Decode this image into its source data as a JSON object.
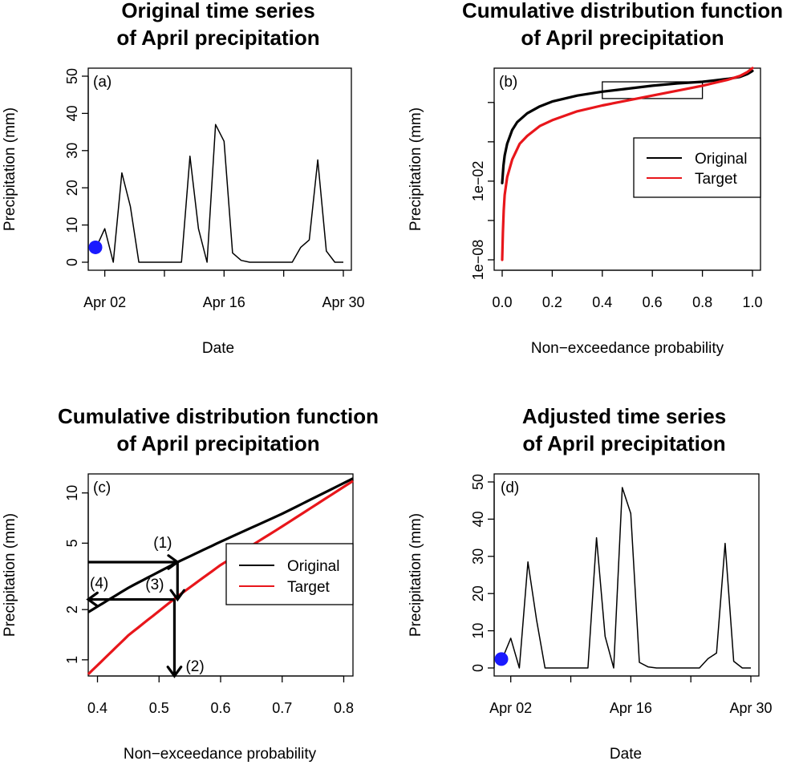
{
  "chart_data": [
    {
      "id": "a",
      "type": "line",
      "panel_tag": "(a)",
      "title_lines": [
        "Original time series",
        "of April precipitation"
      ],
      "xlabel": "Date",
      "ylabel": "Precipitation (mm)",
      "x_tick_labels": [
        "Apr 02",
        "Apr 16",
        "Apr 30"
      ],
      "x_tick_days": [
        2,
        16,
        30
      ],
      "x_minor_tick_days": [
        9,
        23
      ],
      "y_ticks": [
        0,
        10,
        20,
        30,
        40,
        50
      ],
      "xlim": [
        1,
        30
      ],
      "ylim": [
        0,
        50
      ],
      "series": [
        {
          "color": "#000000",
          "x": [
            1,
            2,
            3,
            4,
            5,
            6,
            7,
            8,
            9,
            10,
            11,
            12,
            13,
            14,
            15,
            16,
            17,
            18,
            19,
            20,
            21,
            22,
            23,
            24,
            25,
            26,
            27,
            28,
            29,
            30
          ],
          "values": [
            4,
            9,
            0,
            24,
            15,
            0,
            0,
            0,
            0,
            0,
            0,
            28.5,
            9,
            0,
            37,
            32.5,
            2.5,
            0.5,
            0,
            0,
            0,
            0,
            0,
            0,
            4,
            6,
            27.5,
            3,
            0,
            0
          ]
        }
      ],
      "highlight_point": {
        "x": 1,
        "y": 4,
        "color": "#1a1aff"
      }
    },
    {
      "id": "b",
      "type": "line",
      "panel_tag": "(b)",
      "title_lines": [
        "Cumulative distribution function",
        "of April precipitation"
      ],
      "xlabel": "Non−exceedance probability",
      "ylabel": "Precipitation (mm)",
      "x_ticks": [
        0.0,
        0.2,
        0.4,
        0.6,
        0.8,
        1.0
      ],
      "x_tick_labels": [
        "0.0",
        "0.2",
        "0.4",
        "0.6",
        "0.8",
        "1.0"
      ],
      "y_scale": "log",
      "y_ticks": [
        1e-08,
        1e-06,
        0.0001,
        0.01,
        1
      ],
      "y_tick_labels": [
        "1e−08",
        "",
        "1e−02",
        "",
        ""
      ],
      "y_labeled_ticks": [
        "1e−08",
        "1e−02"
      ],
      "xlim": [
        0,
        1
      ],
      "ylim_log10": [
        -8,
        1.5
      ],
      "series": [
        {
          "name": "Original",
          "color": "#000000",
          "x": [
            0.0,
            0.005,
            0.01,
            0.02,
            0.04,
            0.06,
            0.1,
            0.15,
            0.2,
            0.3,
            0.4,
            0.5,
            0.6,
            0.7,
            0.8,
            0.9,
            0.95,
            0.98,
            1.0
          ],
          "log10y": [
            -4.1,
            -3.2,
            -2.7,
            -2.1,
            -1.4,
            -1.0,
            -0.55,
            -0.2,
            0.05,
            0.35,
            0.55,
            0.7,
            0.85,
            0.97,
            1.05,
            1.2,
            1.3,
            1.45,
            1.6
          ]
        },
        {
          "name": "Target",
          "color": "#e8161b",
          "x": [
            0.0,
            0.003,
            0.006,
            0.01,
            0.02,
            0.04,
            0.07,
            0.1,
            0.15,
            0.2,
            0.3,
            0.4,
            0.5,
            0.6,
            0.7,
            0.8,
            0.9,
            0.95,
            0.98,
            1.0
          ],
          "log10y": [
            -8,
            -6.6,
            -5.5,
            -4.7,
            -3.8,
            -2.9,
            -2.1,
            -1.7,
            -1.2,
            -0.9,
            -0.45,
            -0.15,
            0.1,
            0.35,
            0.6,
            0.85,
            1.15,
            1.35,
            1.55,
            1.75
          ]
        }
      ],
      "zoom_box": {
        "x0": 0.4,
        "x1": 0.8,
        "log10y0": 0.2,
        "log10y1": 1.05
      },
      "legend_position": "center-right"
    },
    {
      "id": "c",
      "type": "line",
      "panel_tag": "(c)",
      "title_lines": [
        "Cumulative distribution function",
        "of April precipitation"
      ],
      "xlabel": "Non−exceedance probability",
      "ylabel": "Precipitation (mm)",
      "x_ticks": [
        0.4,
        0.5,
        0.6,
        0.7,
        0.8
      ],
      "x_tick_labels": [
        "0.4",
        "0.5",
        "0.6",
        "0.7",
        "0.8"
      ],
      "y_scale": "log",
      "y_ticks": [
        1,
        2,
        5,
        10
      ],
      "y_tick_labels": [
        "1",
        "2",
        "5",
        "10"
      ],
      "xlim": [
        0.385,
        0.815
      ],
      "ylim": [
        0.8,
        13
      ],
      "series": [
        {
          "name": "Original",
          "color": "#000000",
          "x": [
            0.385,
            0.45,
            0.53,
            0.6,
            0.7,
            0.815
          ],
          "values": [
            1.93,
            2.7,
            3.85,
            5.1,
            7.5,
            12.2
          ]
        },
        {
          "name": "Target",
          "color": "#e8161b",
          "x": [
            0.385,
            0.45,
            0.53,
            0.6,
            0.7,
            0.815
          ],
          "values": [
            0.82,
            1.4,
            2.4,
            3.7,
            6.3,
            11.8
          ]
        }
      ],
      "arrows": [
        {
          "label": "(1)",
          "x_start": 0.385,
          "y_start": 3.85,
          "x_end": 0.53,
          "y_end": 3.85
        },
        {
          "label": "(2)",
          "x_start": 0.525,
          "y_start": 2.3,
          "x_end": 0.525,
          "y_end": 0.8
        },
        {
          "label": "(3)",
          "x_start": 0.53,
          "y_start": 3.85,
          "x_end": 0.53,
          "y_end": 2.3
        },
        {
          "label": "(4)",
          "x_start": 0.525,
          "y_start": 2.3,
          "x_end": 0.385,
          "y_end": 2.3
        }
      ],
      "legend_position": "center-right"
    },
    {
      "id": "d",
      "type": "line",
      "panel_tag": "(d)",
      "title_lines": [
        "Adjusted time series",
        "of April precipitation"
      ],
      "xlabel": "Date",
      "ylabel": "Precipitation (mm)",
      "x_tick_labels": [
        "Apr 02",
        "Apr 16",
        "Apr 30"
      ],
      "x_tick_days": [
        2,
        16,
        30
      ],
      "x_minor_tick_days": [
        9,
        23
      ],
      "y_ticks": [
        0,
        10,
        20,
        30,
        40,
        50
      ],
      "xlim": [
        1,
        30
      ],
      "ylim": [
        0,
        50
      ],
      "series": [
        {
          "color": "#000000",
          "x": [
            1,
            2,
            3,
            4,
            5,
            6,
            7,
            8,
            9,
            10,
            11,
            12,
            13,
            14,
            15,
            16,
            17,
            18,
            19,
            20,
            21,
            22,
            23,
            24,
            25,
            26,
            27,
            28,
            29,
            30
          ],
          "values": [
            2.4,
            8,
            0,
            28.5,
            13,
            0,
            0,
            0,
            0,
            0,
            0,
            35,
            8.5,
            0,
            48.5,
            41.5,
            1.5,
            0.3,
            0,
            0,
            0,
            0,
            0,
            0,
            2.5,
            4,
            33.5,
            1.8,
            0,
            0
          ]
        }
      ],
      "highlight_point": {
        "x": 1,
        "y": 2.4,
        "color": "#1a1aff"
      }
    }
  ]
}
